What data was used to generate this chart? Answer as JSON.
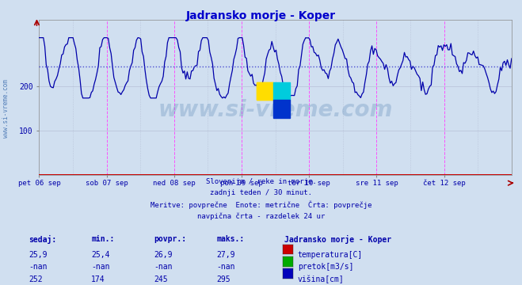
{
  "title": "Jadransko morje - Koper",
  "title_color": "#0000cc",
  "bg_color": "#d0dff0",
  "plot_bg_color": "#d0dff0",
  "grid_color": "#b0b8d0",
  "line_color": "#0000aa",
  "avg_line_color": "#3333cc",
  "avg_value": 245,
  "y_min": 0,
  "y_max": 350,
  "y_ticks": [
    100,
    200
  ],
  "x_labels": [
    "pet 06 sep",
    "sob 07 sep",
    "ned 08 sep",
    "pon 09 sep",
    "tor 10 sep",
    "sre 11 sep",
    "čet 12 sep"
  ],
  "n_days": 7,
  "subtitle_lines": [
    "Slovenija / reke in morje.",
    "zadnji teden / 30 minut.",
    "Meritve: povprečne  Enote: metrične  Črta: povprečje",
    "navpična črta - razdelek 24 ur"
  ],
  "table_headers": [
    "sedaj:",
    "min.:",
    "povpr.:",
    "maks.:"
  ],
  "legend_title": "Jadransko morje - Koper",
  "rows": [
    {
      "sedaj": "25,9",
      "min": "25,4",
      "povpr": "26,9",
      "maks": "27,9",
      "color": "#cc0000",
      "label": "temperatura[C]"
    },
    {
      "sedaj": "-nan",
      "min": "-nan",
      "povpr": "-nan",
      "maks": "-nan",
      "color": "#00aa00",
      "label": "pretok[m3/s]"
    },
    {
      "sedaj": "252",
      "min": "174",
      "povpr": "245",
      "maks": "295",
      "color": "#0000bb",
      "label": "višina[cm]"
    }
  ],
  "text_color": "#0000aa",
  "watermark": "www.si-vreme.com",
  "red_line_color": "#cc0000",
  "magenta_vline_color": "#ff44ff",
  "sidebar_text": "www.si-vreme.com"
}
